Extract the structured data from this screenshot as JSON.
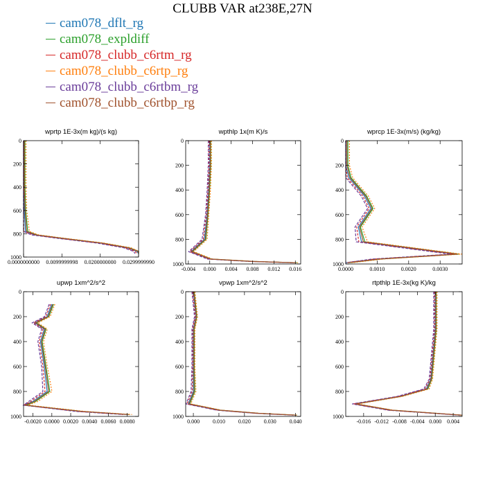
{
  "title": "CLUBB VAR at238E,27N",
  "legend": [
    {
      "name": "cam078_dflt_rg",
      "color": "#1f77b4"
    },
    {
      "name": "cam078_expldiff",
      "color": "#2ca02c"
    },
    {
      "name": "cam078_clubb_c6rtm_rg",
      "color": "#d62728"
    },
    {
      "name": "cam078_clubb_c6rtp_rg",
      "color": "#ff7f0e"
    },
    {
      "name": "cam078_clubb_c6rtbm_rg",
      "color": "#6a3d9a"
    },
    {
      "name": "cam078_clubb_c6rtbp_rg",
      "color": "#a0522d"
    }
  ],
  "chart_data": [
    {
      "type": "line",
      "title": "wprtp  1E-3x(m kg)/(s kg)",
      "xlim": [
        0,
        0.03
      ],
      "ylim": [
        1000,
        0
      ],
      "xticks": [
        0.0,
        0.01,
        0.02,
        0.03
      ],
      "xtick_labels": [
        "0.0000000000",
        "0.0099999998",
        "0.0200000000",
        "0.0299999990"
      ],
      "yticks": [
        0,
        200,
        400,
        600,
        800,
        1000
      ],
      "ytick_labels": [
        "0",
        "200",
        "400",
        "600",
        "800",
        "1000"
      ],
      "profile": [
        [
          0,
          0
        ],
        [
          0,
          200
        ],
        [
          0,
          400
        ],
        [
          0.0002,
          600
        ],
        [
          0.0005,
          780
        ],
        [
          0.003,
          810
        ],
        [
          0.01,
          840
        ],
        [
          0.02,
          880
        ],
        [
          0.027,
          920
        ],
        [
          0.0295,
          950
        ],
        [
          0.03,
          970
        ]
      ],
      "spread": 0.0008,
      "grid": false
    },
    {
      "type": "line",
      "title": "wpthlp  1x(m K)/s",
      "xlim": [
        -0.0045,
        0.017
      ],
      "ylim": [
        1000,
        0
      ],
      "xticks": [
        -0.004,
        0.0,
        0.004,
        0.008,
        0.012,
        0.016
      ],
      "xtick_labels": [
        "-0.004",
        "0.000",
        "0.004",
        "0.008",
        "0.012",
        "0.016"
      ],
      "yticks": [
        0,
        200,
        400,
        600,
        800,
        1000
      ],
      "ytick_labels": [
        "0",
        "200",
        "400",
        "600",
        "800",
        "1000"
      ],
      "profile": [
        [
          0,
          0
        ],
        [
          0,
          200
        ],
        [
          -0.0002,
          400
        ],
        [
          -0.0005,
          600
        ],
        [
          -0.001,
          800
        ],
        [
          -0.0035,
          900
        ],
        [
          0,
          960
        ],
        [
          0.008,
          980
        ],
        [
          0.016,
          990
        ]
      ],
      "spread": 0.0004,
      "grid": false
    },
    {
      "type": "line",
      "title": "wprcp  1E-3x(m/s) (kg/kg)",
      "xlim": [
        0,
        0.0037
      ],
      "ylim": [
        1000,
        0
      ],
      "xticks": [
        0.0,
        0.001,
        0.002,
        0.003
      ],
      "xtick_labels": [
        "0.0000",
        "0.0010",
        "0.0020",
        "0.0030"
      ],
      "yticks": [
        0,
        200,
        400,
        600,
        800,
        1000
      ],
      "ytick_labels": [
        "0",
        "200",
        "400",
        "600",
        "800",
        "1000"
      ],
      "profile": [
        [
          0,
          0
        ],
        [
          0,
          200
        ],
        [
          0.0001,
          300
        ],
        [
          0.0006,
          450
        ],
        [
          0.0008,
          550
        ],
        [
          0.0004,
          700
        ],
        [
          0.0005,
          820
        ],
        [
          0.002,
          870
        ],
        [
          0.0035,
          920
        ],
        [
          0.001,
          960
        ],
        [
          0,
          990
        ]
      ],
      "spread": 0.00015,
      "grid": false
    },
    {
      "type": "line",
      "title": "upwp  1xm^2/s^2",
      "xlim": [
        -0.003,
        0.0092
      ],
      "ylim": [
        1000,
        0
      ],
      "xticks": [
        -0.002,
        0.0,
        0.002,
        0.004,
        0.006,
        0.008
      ],
      "xtick_labels": [
        "-0.0020",
        "0.0000",
        "0.0020",
        "0.0040",
        "0.0060",
        "0.0080"
      ],
      "yticks": [
        0,
        200,
        400,
        600,
        800,
        1000
      ],
      "ytick_labels": [
        "0",
        "200",
        "400",
        "600",
        "800",
        "1000"
      ],
      "profile": [
        [
          0,
          100
        ],
        [
          -0.0005,
          200
        ],
        [
          -0.0018,
          250
        ],
        [
          -0.0008,
          300
        ],
        [
          -0.0012,
          400
        ],
        [
          -0.0008,
          600
        ],
        [
          -0.0005,
          800
        ],
        [
          -0.002,
          880
        ],
        [
          -0.003,
          910
        ],
        [
          0.003,
          960
        ],
        [
          0.008,
          985
        ]
      ],
      "spread": 0.0004,
      "grid": false
    },
    {
      "type": "line",
      "title": "vpwp  1xm^2/s^2",
      "xlim": [
        -0.003,
        0.042
      ],
      "ylim": [
        1000,
        0
      ],
      "xticks": [
        0.0,
        0.01,
        0.02,
        0.03,
        0.04
      ],
      "xtick_labels": [
        "0.000",
        "0.010",
        "0.020",
        "0.030",
        "0.040"
      ],
      "yticks": [
        0,
        200,
        400,
        600,
        800,
        1000
      ],
      "ytick_labels": [
        "0",
        "200",
        "400",
        "600",
        "800",
        "1000"
      ],
      "profile": [
        [
          0,
          0
        ],
        [
          0.001,
          200
        ],
        [
          0,
          300
        ],
        [
          0,
          600
        ],
        [
          0,
          800
        ],
        [
          -0.002,
          900
        ],
        [
          0.01,
          950
        ],
        [
          0.025,
          975
        ],
        [
          0.04,
          990
        ]
      ],
      "spread": 0.0008,
      "grid": false
    },
    {
      "type": "line",
      "title": "rtpthlp  1E-3x(kg K)/kg",
      "xlim": [
        -0.02,
        0.006
      ],
      "ylim": [
        1000,
        0
      ],
      "xticks": [
        -0.016,
        -0.012,
        -0.008,
        -0.004,
        0.0,
        0.004
      ],
      "xtick_labels": [
        "-0.016",
        "-0.012",
        "-0.008",
        "-0.004",
        "0.000",
        "0.004"
      ],
      "yticks": [
        0,
        200,
        400,
        600,
        800,
        1000
      ],
      "ytick_labels": [
        "0",
        "200",
        "400",
        "600",
        "800",
        "1000"
      ],
      "profile": [
        [
          0,
          0
        ],
        [
          0,
          300
        ],
        [
          -0.0005,
          500
        ],
        [
          -0.001,
          700
        ],
        [
          -0.002,
          780
        ],
        [
          -0.008,
          840
        ],
        [
          -0.018,
          900
        ],
        [
          -0.01,
          950
        ],
        [
          0.006,
          990
        ]
      ],
      "spread": 0.0005,
      "grid": false
    }
  ]
}
